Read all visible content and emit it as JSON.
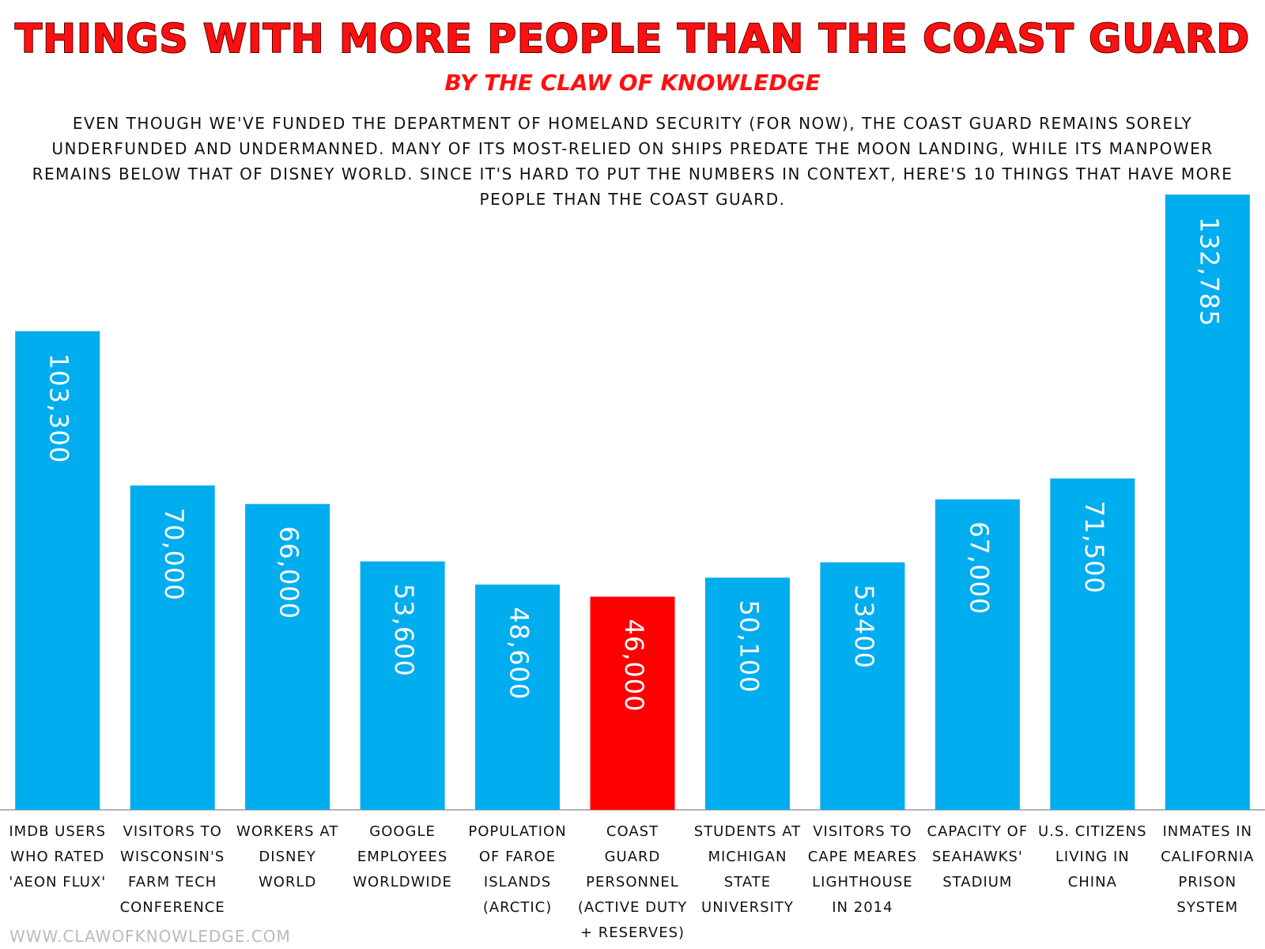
{
  "chart_data": {
    "type": "bar",
    "title": "THINGS WITH MORE PEOPLE THAN THE COAST GUARD",
    "subtitle": "BY THE CLAW OF KNOWLEDGE",
    "description": "EVEN THOUGH WE'VE FUNDED THE DEPARTMENT OF HOMELAND SECURITY (FOR NOW), THE COAST GUARD REMAINS SORELY UNDERFUNDED AND UNDERMANNED. MANY OF ITS MOST-RELIED ON SHIPS PREDATE THE MOON LANDING, WHILE ITS MANPOWER REMAINS BELOW THAT OF DISNEY WORLD. SINCE IT'S HARD TO PUT THE NUMBERS IN CONTEXT, HERE'S 10 THINGS THAT HAVE MORE PEOPLE THAN THE COAST GUARD.",
    "footer": "WWW.CLAWOFKNOWLEDGE.COM",
    "categories": [
      "IMDB USERS WHO RATED 'AEON FLUX'",
      "VISITORS TO WISCONSIN'S FARM TECH CONFERENCE",
      "WORKERS AT DISNEY WORLD",
      "GOOGLE EMPLOYEES WORLDWIDE",
      "POPULATION OF FAROE ISLANDS (ARCTIC)",
      "COAST GUARD PERSONNEL (ACTIVE DUTY + RESERVES)",
      "STUDENTS AT MICHIGAN STATE UNIVERSITY",
      "VISITORS TO CAPE MEARES LIGHTHOUSE IN 2014",
      "CAPACITY OF SEAHAWKS' STADIUM",
      "U.S. CITIZENS LIVING IN CHINA",
      "INMATES IN CALIFORNIA PRISON SYSTEM"
    ],
    "values": [
      103300,
      70000,
      66000,
      53600,
      48600,
      46000,
      50100,
      53400,
      67000,
      71500,
      132785
    ],
    "value_labels": [
      "103,300",
      "70,000",
      "66,000",
      "53,600",
      "48,600",
      "46,000",
      "50,100",
      "53400",
      "67,000",
      "71,500",
      "132,785"
    ],
    "colors": [
      "#00adef",
      "#00adef",
      "#00adef",
      "#00adef",
      "#00adef",
      "#ff0000",
      "#00adef",
      "#00adef",
      "#00adef",
      "#00adef",
      "#00adef"
    ]
  }
}
